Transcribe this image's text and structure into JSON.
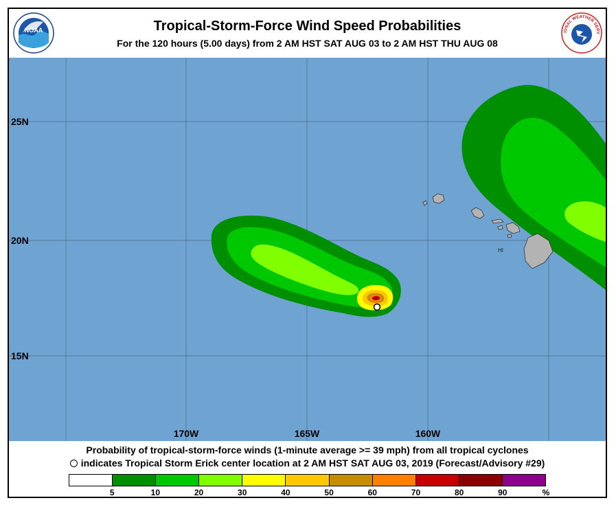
{
  "header": {
    "title": "Tropical-Storm-Force Wind Speed Probabilities",
    "subtitle": "For the 120 hours (5.00 days) from 2 AM HST SAT AUG 03 to 2 AM HST THU AUG 08",
    "noaa_logo_text": "NOAA",
    "nws_logo_text": "NATIONAL WEATHER SERVICE"
  },
  "map": {
    "lat_labels": [
      "25N",
      "20N",
      "15N"
    ],
    "lon_labels": [
      "170W",
      "165W",
      "160W"
    ],
    "region_label": "HI",
    "colors": {
      "ocean": "#6fa4d2",
      "land": "#b3b3b3",
      "grid": "#4d6a85"
    }
  },
  "footer": {
    "line1": "Probability of tropical-storm-force winds (1-minute average >= 39 mph) from all tropical cyclones",
    "line2": "indicates Tropical Storm Erick center location at 2 AM HST SAT AUG 03, 2019 (Forecast/Advisory #29)"
  },
  "legend": {
    "colors": [
      "#ffffff",
      "#008f00",
      "#00c800",
      "#80ff00",
      "#ffff00",
      "#ffc800",
      "#c88c00",
      "#ff8000",
      "#c80000",
      "#8c0000",
      "#8c008c"
    ],
    "labels": [
      "5",
      "10",
      "20",
      "30",
      "40",
      "50",
      "60",
      "70",
      "80",
      "90",
      "%"
    ]
  }
}
